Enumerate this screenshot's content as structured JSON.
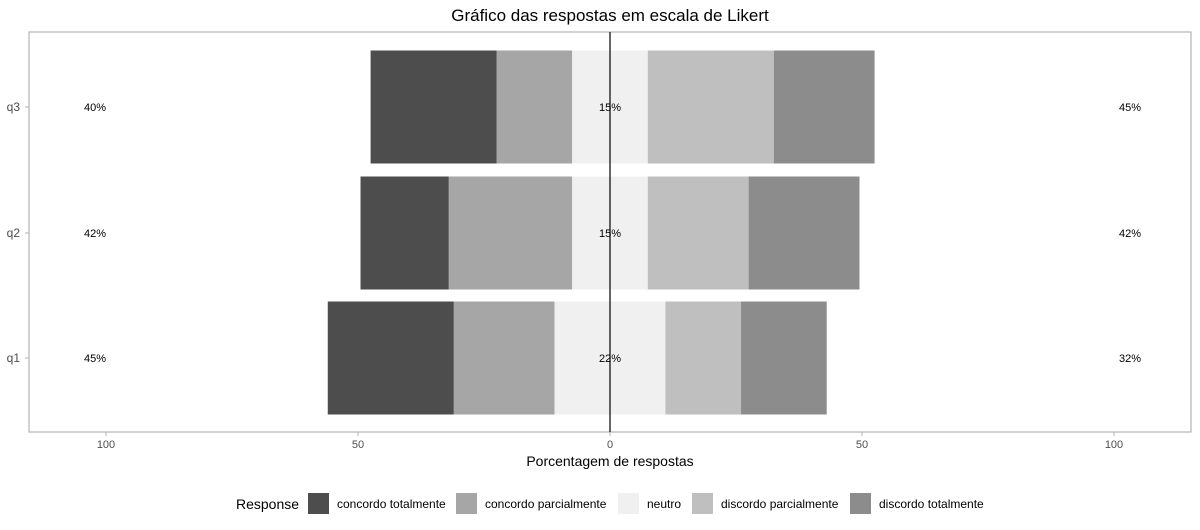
{
  "chart_data": {
    "type": "bar",
    "subtype": "diverging-stacked-likert",
    "title": "Gráfico das respostas em escala de Likert",
    "xlabel": "Porcentagem de respostas",
    "ylabel": "",
    "xlim": [
      -100,
      100
    ],
    "xticks": [
      -100,
      -50,
      0,
      50,
      100
    ],
    "xtick_labels": [
      "100",
      "50",
      "0",
      "50",
      "100"
    ],
    "categories": [
      "q1",
      "q2",
      "q3"
    ],
    "series": [
      {
        "name": "concordo totalmente",
        "color": "#4d4d4d",
        "values": [
          25,
          17.5,
          25
        ]
      },
      {
        "name": "concordo parcialmente",
        "color": "#a6a6a6",
        "values": [
          20,
          24.5,
          15
        ]
      },
      {
        "name": "neutro",
        "color": "#f0f0f0",
        "values": [
          22,
          15,
          15
        ]
      },
      {
        "name": "discordo parcialmente",
        "color": "#bfbfbf",
        "values": [
          15,
          20,
          25
        ]
      },
      {
        "name": "discordo totalmente",
        "color": "#8c8c8c",
        "values": [
          17,
          22,
          20
        ]
      }
    ],
    "labels": {
      "left": [
        "45%",
        "42%",
        "40%"
      ],
      "center": [
        "22%",
        "15%",
        "15%"
      ],
      "right": [
        "32%",
        "42%",
        "45%"
      ]
    },
    "grid": false,
    "legend": {
      "title": "Response",
      "position": "bottom"
    }
  }
}
